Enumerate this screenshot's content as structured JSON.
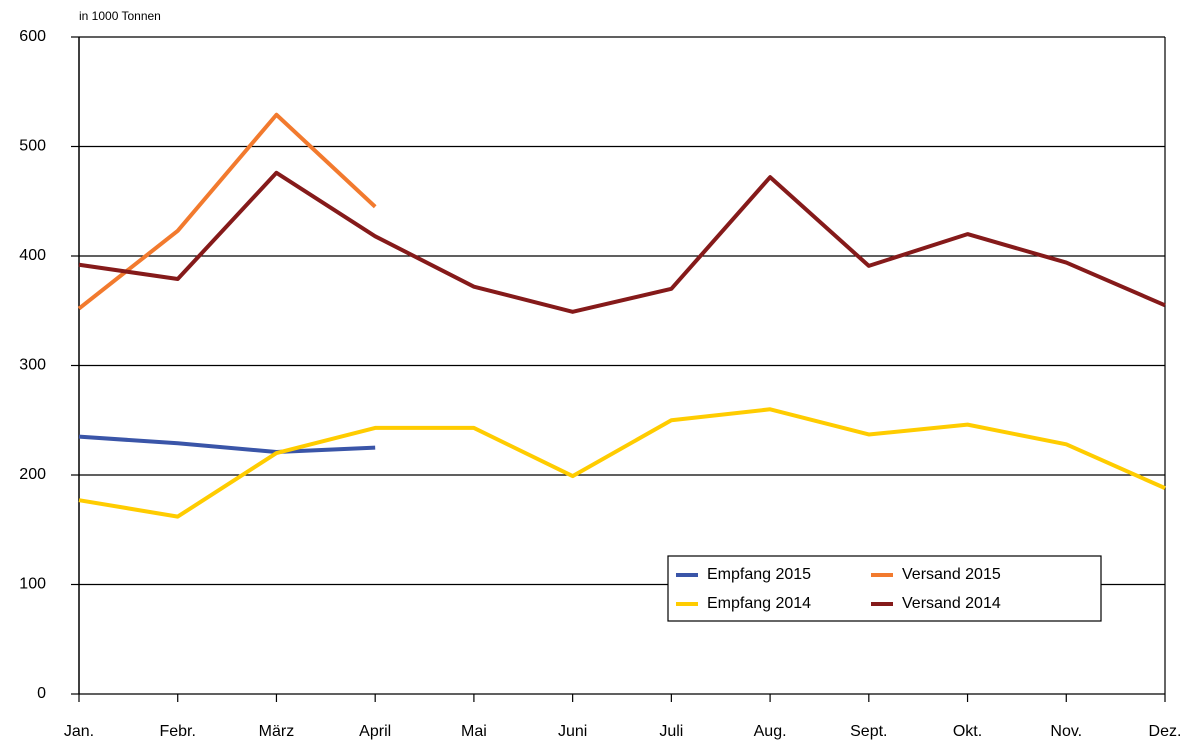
{
  "chart_data": {
    "type": "line",
    "unit_label": "in 1000 Tonnen",
    "categories": [
      "Jan.",
      "Febr.",
      "März",
      "April",
      "Mai",
      "Juni",
      "Juli",
      "Aug.",
      "Sept.",
      "Okt.",
      "Nov.",
      "Dez."
    ],
    "series": [
      {
        "name": "Empfang 2015",
        "color": "#3a55a8",
        "values": [
          235,
          229,
          221,
          225,
          null,
          null,
          null,
          null,
          null,
          null,
          null,
          null
        ]
      },
      {
        "name": "Versand 2015",
        "color": "#f27a2e",
        "values": [
          352,
          423,
          529,
          445,
          null,
          null,
          null,
          null,
          null,
          null,
          null,
          null
        ]
      },
      {
        "name": "Empfang 2014",
        "color": "#ffcc00",
        "values": [
          177,
          162,
          220,
          243,
          243,
          199,
          250,
          260,
          237,
          246,
          228,
          188
        ]
      },
      {
        "name": "Versand 2014",
        "color": "#851a1a",
        "values": [
          392,
          379,
          476,
          418,
          372,
          349,
          370,
          472,
          391,
          420,
          394,
          355
        ]
      }
    ],
    "ylim": [
      0,
      600
    ],
    "yticks": [
      0,
      100,
      200,
      300,
      400,
      500,
      600
    ],
    "grid": true,
    "legend": "lower right"
  }
}
